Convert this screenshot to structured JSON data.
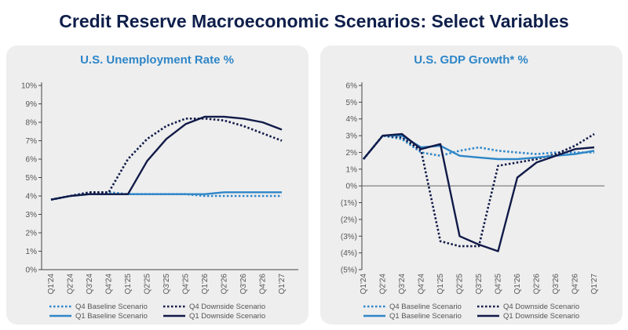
{
  "page": {
    "title": "Credit Reserve Macroeconomic Scenarios: Select Variables"
  },
  "colors": {
    "title": "#0f1f4b",
    "light_blue": "#2e86c8",
    "dark_navy": "#111a48",
    "panel_bg": "#eeeeee",
    "axis_text": "#555555"
  },
  "chart_data": [
    {
      "type": "line",
      "title": "U.S. Unemployment Rate %",
      "categories": [
        "Q1'24",
        "Q2'24",
        "Q3'24",
        "Q4'24",
        "Q1'25",
        "Q2'25",
        "Q3'25",
        "Q4'25",
        "Q1'26",
        "Q2'26",
        "Q3'26",
        "Q4'26",
        "Q1'27"
      ],
      "ylim": [
        0,
        10
      ],
      "yticks": [
        0,
        1,
        2,
        3,
        4,
        5,
        6,
        7,
        8,
        9,
        10
      ],
      "ytick_labels": [
        "0%",
        "1%",
        "2%",
        "3%",
        "4%",
        "5%",
        "6%",
        "7%",
        "8%",
        "9%",
        "10%"
      ],
      "series": [
        {
          "name": "Q4 Baseline Scenario",
          "style": "dotted",
          "color": "#2e86c8",
          "values": [
            3.8,
            4.0,
            4.2,
            4.2,
            4.1,
            4.1,
            4.1,
            4.1,
            4.0,
            4.0,
            4.0,
            4.0,
            4.0
          ]
        },
        {
          "name": "Q4 Downside Scenario",
          "style": "dotted",
          "color": "#111a48",
          "values": [
            3.8,
            4.0,
            4.2,
            4.2,
            6.0,
            7.1,
            7.8,
            8.2,
            8.2,
            8.1,
            7.8,
            7.4,
            7.0
          ]
        },
        {
          "name": "Q1 Baseline Scenario",
          "style": "solid",
          "color": "#2e86c8",
          "values": [
            3.8,
            4.0,
            4.1,
            4.1,
            4.1,
            4.1,
            4.1,
            4.1,
            4.1,
            4.2,
            4.2,
            4.2,
            4.2
          ]
        },
        {
          "name": "Q1 Downside Scenario",
          "style": "solid",
          "color": "#111a48",
          "values": [
            3.8,
            4.0,
            4.1,
            4.1,
            4.1,
            5.9,
            7.1,
            7.9,
            8.3,
            8.3,
            8.2,
            8.0,
            7.6
          ]
        }
      ]
    },
    {
      "type": "line",
      "title": "U.S. GDP Growth* %",
      "categories": [
        "Q1'24",
        "Q2'24",
        "Q3'24",
        "Q4'24",
        "Q1'25",
        "Q2'25",
        "Q3'25",
        "Q4'25",
        "Q1'26",
        "Q2'26",
        "Q3'26",
        "Q4'26",
        "Q1'27"
      ],
      "ylim": [
        -5,
        6
      ],
      "yticks": [
        6,
        5,
        4,
        3,
        2,
        1,
        0,
        -1,
        -2,
        -3,
        -4,
        -5
      ],
      "ytick_labels": [
        "6%",
        "5%",
        "4%",
        "3%",
        "2%",
        "1%",
        "0%",
        "(1%)",
        "(2%)",
        "(3%)",
        "(4%)",
        "(5%)"
      ],
      "zero_line": true,
      "series": [
        {
          "name": "Q4 Baseline Scenario",
          "style": "dotted",
          "color": "#2e86c8",
          "values": [
            1.6,
            3.0,
            2.8,
            2.0,
            1.8,
            2.1,
            2.3,
            2.1,
            2.0,
            1.9,
            2.0,
            2.0,
            2.0
          ]
        },
        {
          "name": "Q4 Downside Scenario",
          "style": "dotted",
          "color": "#111a48",
          "values": [
            1.6,
            3.0,
            2.9,
            2.1,
            -3.3,
            -3.6,
            -3.6,
            1.2,
            1.4,
            1.6,
            1.9,
            2.4,
            3.1
          ]
        },
        {
          "name": "Q1 Baseline Scenario",
          "style": "solid",
          "color": "#2e86c8",
          "values": [
            1.6,
            3.0,
            3.0,
            2.3,
            2.4,
            1.8,
            1.7,
            1.6,
            1.6,
            1.7,
            1.8,
            1.9,
            2.1
          ]
        },
        {
          "name": "Q1 Downside Scenario",
          "style": "solid",
          "color": "#111a48",
          "values": [
            1.6,
            3.0,
            3.1,
            2.2,
            2.5,
            -3.0,
            -3.5,
            -3.9,
            0.5,
            1.4,
            1.8,
            2.2,
            2.3
          ]
        }
      ]
    }
  ]
}
